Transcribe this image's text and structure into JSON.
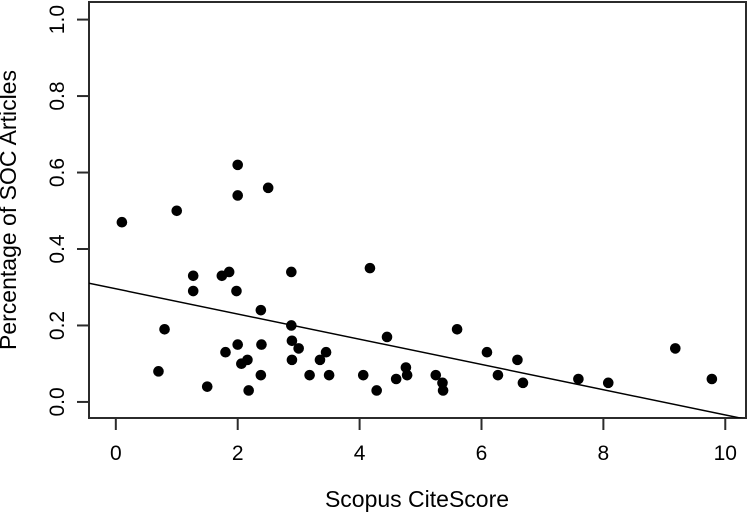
{
  "chart_data": {
    "type": "scatter",
    "title": "",
    "xlabel": "Scopus CiteScore",
    "ylabel": "Percentage of SOC Articles",
    "x_ticks": {
      "values": [
        0,
        2,
        4,
        6,
        8,
        10
      ],
      "labels": [
        "0",
        "2",
        "4",
        "6",
        "8",
        "10"
      ]
    },
    "y_ticks": {
      "values": [
        0.0,
        0.2,
        0.4,
        0.6,
        0.8,
        1.0
      ],
      "labels": [
        "0.0",
        "0.2",
        "0.4",
        "0.6",
        "0.8",
        "1.0"
      ]
    },
    "xlim": [
      -0.44,
      10.34
    ],
    "ylim": [
      -0.042,
      1.046
    ],
    "grid": false,
    "legend": "none",
    "point_color": "#000000",
    "point_radius_px": 5.3,
    "trend_line": {
      "slope": -0.033,
      "intercept": 0.296,
      "color": "#000000"
    },
    "border_color": "#2b2b2b",
    "points": [
      [
        0.1,
        0.47
      ],
      [
        0.7,
        0.08
      ],
      [
        0.8,
        0.19
      ],
      [
        1.0,
        0.5
      ],
      [
        1.27,
        0.33
      ],
      [
        1.27,
        0.29
      ],
      [
        1.5,
        0.04
      ],
      [
        1.74,
        0.33
      ],
      [
        1.86,
        0.34
      ],
      [
        1.8,
        0.13
      ],
      [
        1.98,
        0.29
      ],
      [
        2.0,
        0.62
      ],
      [
        2.0,
        0.54
      ],
      [
        2.0,
        0.15
      ],
      [
        2.06,
        0.1
      ],
      [
        2.16,
        0.11
      ],
      [
        2.18,
        0.03
      ],
      [
        2.38,
        0.24
      ],
      [
        2.39,
        0.15
      ],
      [
        2.38,
        0.07
      ],
      [
        2.5,
        0.56
      ],
      [
        2.88,
        0.34
      ],
      [
        2.88,
        0.2
      ],
      [
        2.89,
        0.16
      ],
      [
        2.89,
        0.11
      ],
      [
        3.0,
        0.14
      ],
      [
        3.18,
        0.07
      ],
      [
        3.35,
        0.11
      ],
      [
        3.45,
        0.13
      ],
      [
        3.5,
        0.07
      ],
      [
        4.06,
        0.07
      ],
      [
        4.17,
        0.35
      ],
      [
        4.28,
        0.03
      ],
      [
        4.45,
        0.17
      ],
      [
        4.6,
        0.06
      ],
      [
        4.76,
        0.09
      ],
      [
        4.78,
        0.07
      ],
      [
        5.25,
        0.07
      ],
      [
        5.36,
        0.05
      ],
      [
        5.37,
        0.03
      ],
      [
        5.6,
        0.19
      ],
      [
        6.09,
        0.13
      ],
      [
        6.27,
        0.07
      ],
      [
        6.59,
        0.11
      ],
      [
        6.68,
        0.05
      ],
      [
        7.59,
        0.06
      ],
      [
        8.08,
        0.05
      ],
      [
        9.18,
        0.14
      ],
      [
        9.78,
        0.06
      ]
    ]
  }
}
